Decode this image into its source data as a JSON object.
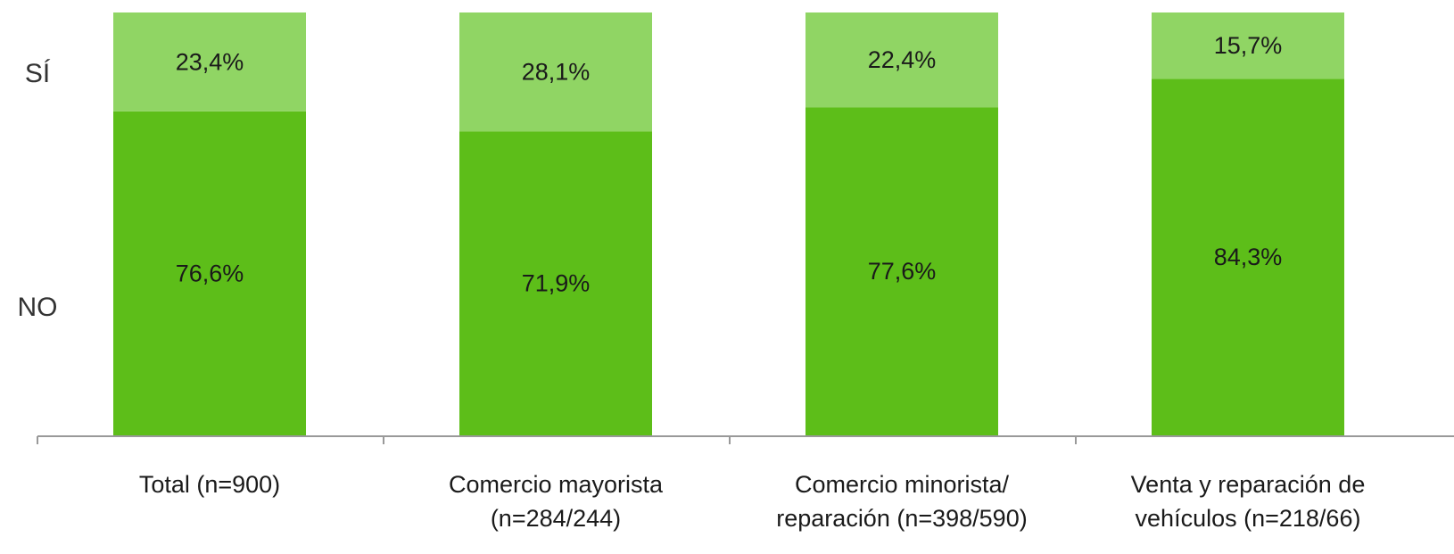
{
  "chart_data": {
    "type": "bar",
    "stacked": true,
    "normalized": true,
    "categories": [
      [
        "Total (n=900)"
      ],
      [
        "Comercio mayorista",
        "(n=284/244)"
      ],
      [
        "Comercio minorista/",
        "reparación (n=398/590)"
      ],
      [
        "Venta y reparación de",
        "vehículos (n=218/66)"
      ]
    ],
    "series": [
      {
        "name": "NO",
        "values": [
          76.6,
          71.9,
          77.6,
          84.3
        ],
        "labels": [
          "76,6%",
          "71,9%",
          "77,6%",
          "84,3%"
        ],
        "color": "#5dbe19"
      },
      {
        "name": "SÍ",
        "values": [
          23.4,
          28.1,
          22.4,
          15.7
        ],
        "labels": [
          "23,4%",
          "28,1%",
          "22,4%",
          "15,7%"
        ],
        "color": "#90d564"
      }
    ],
    "ylim": [
      0,
      100
    ],
    "grid": false,
    "legend": "left",
    "axis_color": "#999999"
  }
}
